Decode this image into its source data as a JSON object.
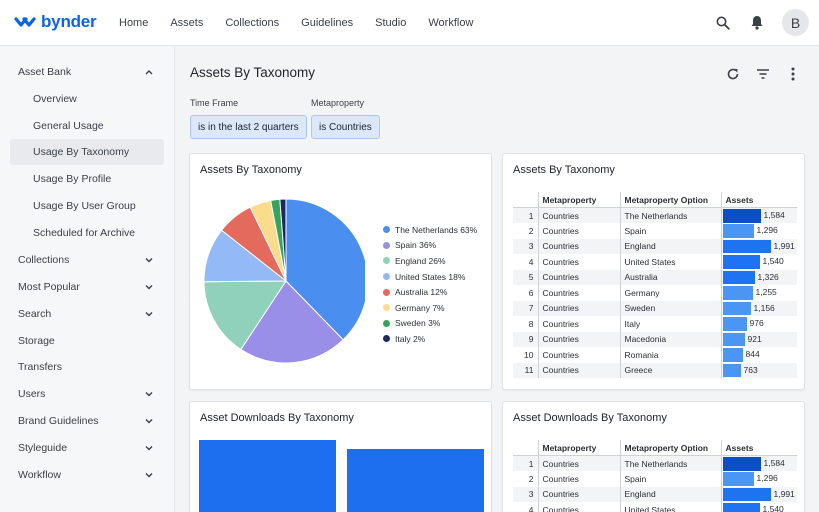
{
  "app": {
    "logo_text": "bynder",
    "avatar_initial": "B"
  },
  "nav": [
    "Home",
    "Assets",
    "Collections",
    "Guidelines",
    "Studio",
    "Workflow"
  ],
  "sidebar": {
    "items": [
      {
        "label": "Asset Bank",
        "chevron": "up"
      },
      {
        "label": "Overview",
        "sub": true
      },
      {
        "label": "General Usage",
        "sub": true
      },
      {
        "label": "Usage By Taxonomy",
        "sub": true,
        "active": true
      },
      {
        "label": "Usage By Profile",
        "sub": true
      },
      {
        "label": "Usage By User Group",
        "sub": true
      },
      {
        "label": "Scheduled for Archive",
        "sub": true
      },
      {
        "label": "Collections",
        "chevron": "down"
      },
      {
        "label": "Most Popular",
        "chevron": "down"
      },
      {
        "label": "Search",
        "chevron": "down"
      },
      {
        "label": "Storage"
      },
      {
        "label": "Transfers"
      },
      {
        "label": "Users",
        "chevron": "down"
      },
      {
        "label": "Brand Guidelines",
        "chevron": "down"
      },
      {
        "label": "Styleguide",
        "chevron": "down"
      },
      {
        "label": "Workflow",
        "chevron": "down"
      }
    ]
  },
  "main": {
    "title": "Assets By Taxonomy",
    "filters": {
      "time_frame_label": "Time Frame",
      "time_frame_value": "is in the last 2 quarters",
      "metaproperty_label": "Metaproperty",
      "metaproperty_value": "is Countries"
    }
  },
  "cards": {
    "pie_title": "Assets By Taxonomy",
    "table1_title": "Assets By Taxonomy",
    "downloads_chart_title": "Asset Downloads By Taxonomy",
    "table2_title": "Asset Downloads By Taxonomy"
  },
  "table_headers": {
    "metaproperty": "Metaproperty",
    "option": "Metaproperty Option",
    "assets": "Assets"
  },
  "table_rows": [
    {
      "idx": "1",
      "mp": "Countries",
      "option": "The Netherlands",
      "assets": 1584,
      "display": "1,584"
    },
    {
      "idx": "2",
      "mp": "Countries",
      "option": "Spain",
      "assets": 1296,
      "display": "1,296"
    },
    {
      "idx": "3",
      "mp": "Countries",
      "option": "England",
      "assets": 1991,
      "display": "1,991"
    },
    {
      "idx": "4",
      "mp": "Countries",
      "option": "United States",
      "assets": 1540,
      "display": "1,540"
    },
    {
      "idx": "5",
      "mp": "Countries",
      "option": "Australia",
      "assets": 1326,
      "display": "1,326"
    },
    {
      "idx": "6",
      "mp": "Countries",
      "option": "Germany",
      "assets": 1255,
      "display": "1,255"
    },
    {
      "idx": "7",
      "mp": "Countries",
      "option": "Sweden",
      "assets": 1156,
      "display": "1,156"
    },
    {
      "idx": "8",
      "mp": "Countries",
      "option": "Italy",
      "assets": 976,
      "display": "976"
    },
    {
      "idx": "9",
      "mp": "Countries",
      "option": "Macedonia",
      "assets": 921,
      "display": "921"
    },
    {
      "idx": "10",
      "mp": "Countries",
      "option": "Romania",
      "assets": 844,
      "display": "844"
    },
    {
      "idx": "11",
      "mp": "Countries",
      "option": "Greece",
      "assets": 763,
      "display": "763"
    }
  ],
  "table2_rows": [
    {
      "idx": "1",
      "mp": "Countries",
      "option": "The Netherlands",
      "assets": 1584,
      "display": "1,584"
    },
    {
      "idx": "2",
      "mp": "Countries",
      "option": "Spain",
      "assets": 1296,
      "display": "1,296"
    },
    {
      "idx": "3",
      "mp": "Countries",
      "option": "England",
      "assets": 1991,
      "display": "1,991"
    },
    {
      "idx": "4",
      "mp": "Countries",
      "option": "United States",
      "assets": 1540,
      "display": "1,540"
    }
  ],
  "colors": {
    "accent": "#0a64e8",
    "chip_bg": "#dbe7fb",
    "bar": "#1e74f0"
  },
  "chart_data": [
    {
      "type": "pie",
      "title": "Assets By Taxonomy",
      "categories": [
        "The Netherlands",
        "Spain",
        "England",
        "United States",
        "Australia",
        "Germany",
        "Sweden",
        "Italy"
      ],
      "values": [
        63,
        36,
        26,
        18,
        12,
        7,
        3,
        2
      ],
      "legend": [
        "The Netherlands 63%",
        "Spain 36%",
        "England 26%",
        "United States 18%",
        "Australia 12%",
        "Germany 7%",
        "Sweden 3%",
        "Italy 2%"
      ],
      "colors": [
        "#4a8fef",
        "#9a8fe8",
        "#8fd1bb",
        "#93baf7",
        "#e46a5e",
        "#fbdb8c",
        "#36a45d",
        "#1c2a5e"
      ],
      "legend_position": "right"
    },
    {
      "type": "bar",
      "title": "Asset Downloads By Taxonomy",
      "categories": [
        "",
        ""
      ],
      "values": [
        1,
        0.89
      ]
    }
  ]
}
